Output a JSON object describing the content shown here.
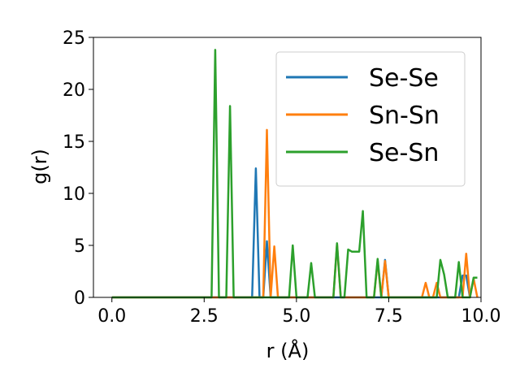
{
  "chart_data": {
    "type": "line",
    "xlabel": "r (Å)",
    "ylabel": "g(r)",
    "xlim": [
      -0.5,
      10.0
    ],
    "ylim": [
      0,
      25
    ],
    "xticks": [
      0.0,
      2.5,
      5.0,
      7.5,
      10.0
    ],
    "xtick_labels": [
      "0.0",
      "2.5",
      "5.0",
      "7.5",
      "10.0"
    ],
    "yticks": [
      0,
      5,
      10,
      15,
      20,
      25
    ],
    "ytick_labels": [
      "0",
      "5",
      "10",
      "15",
      "20",
      "25"
    ],
    "grid": false,
    "legend_position": "top-right",
    "series": [
      {
        "name": "Se-Se",
        "color": "#1f77b4",
        "x": [
          0.0,
          3.8,
          3.9,
          4.0,
          4.1,
          4.2,
          4.3,
          7.3,
          7.4,
          7.5,
          9.4,
          9.5,
          9.6,
          9.7
        ],
        "y": [
          0,
          0,
          12.4,
          0,
          0,
          5.4,
          0,
          0,
          3.6,
          0,
          0,
          2.1,
          2.1,
          0
        ]
      },
      {
        "name": "Sn-Sn",
        "color": "#ff7f0e",
        "x": [
          0.0,
          4.1,
          4.2,
          4.3,
          4.4,
          4.5,
          6.0,
          6.1,
          6.2,
          7.1,
          7.2,
          7.3,
          7.4,
          7.5,
          7.6,
          8.4,
          8.5,
          8.6,
          8.7,
          8.8,
          8.9,
          9.5,
          9.6,
          9.7,
          9.8,
          9.9
        ],
        "y": [
          0,
          0,
          16.1,
          0,
          4.9,
          0,
          0,
          5.1,
          0,
          0,
          3.5,
          0,
          3.5,
          0,
          0,
          0,
          1.4,
          0,
          0,
          1.4,
          0,
          0,
          4.2,
          0,
          1.8,
          0
        ]
      },
      {
        "name": "Se-Sn",
        "color": "#2ca02c",
        "x": [
          0.0,
          2.7,
          2.8,
          2.9,
          3.1,
          3.2,
          3.3,
          4.8,
          4.9,
          5.0,
          5.3,
          5.4,
          5.5,
          6.0,
          6.1,
          6.2,
          6.3,
          6.4,
          6.5,
          6.7,
          6.8,
          6.9,
          7.1,
          7.2,
          7.3,
          8.7,
          8.8,
          8.9,
          9.0,
          9.1,
          9.3,
          9.4,
          9.5,
          9.7,
          9.8,
          9.9
        ],
        "y": [
          0,
          0,
          23.8,
          0,
          0,
          18.4,
          0,
          0,
          5.0,
          0,
          0,
          3.3,
          0,
          0,
          5.2,
          0,
          0,
          4.6,
          4.4,
          4.4,
          8.3,
          0,
          0,
          3.7,
          0,
          0,
          0,
          3.6,
          2.2,
          0,
          0,
          3.4,
          0,
          0,
          1.9,
          1.9
        ]
      }
    ]
  }
}
